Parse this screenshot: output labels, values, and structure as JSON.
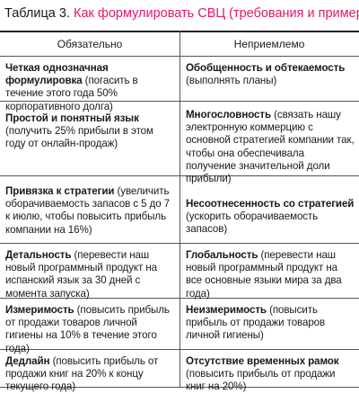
{
  "title": {
    "prefix": "Таблица 3.",
    "text": "Как формулировать СВЦ (требования и примеры)"
  },
  "headers": {
    "left": "Обязательно",
    "right": "Неприемлемо"
  },
  "rows": [
    {
      "left": {
        "term": "Четкая однозначная формулировка",
        "example": " (погасить в течение этого года 50% корпоративного долга)"
      },
      "right": {
        "term": "Обобщенность и обтекаемость",
        "example": " (выполнять планы)"
      }
    },
    {
      "left": {
        "term": "Простой и понятный язык",
        "example": " (получить 25% прибыли в этом году от онлайн-продаж)"
      },
      "right": {
        "term": "Многословность",
        "example": " (связать нашу электронную коммерцию с основной стратегией компании так, чтобы она обеспечивала получение значительной доли прибыли)"
      }
    },
    {
      "left": {
        "term": "Привязка к стратегии",
        "example": " (увеличить оборачиваемость запасов с 5 до 7 к июлю, чтобы повысить прибыль компании на 16%)"
      },
      "right": {
        "term": "Несоотнесенность со стратегией",
        "example": " (ускорить оборачиваемость запасов)"
      }
    },
    {
      "left": {
        "term": "Детальность",
        "example": " (перевести наш новый программный продукт на испанский язык за 30 дней с момента запуска)"
      },
      "right": {
        "term": "Глобальность",
        "example": " (перевести наш новый программный продукт на все основные языки мира за два года)"
      }
    },
    {
      "left": {
        "term": "Измеримость",
        "example": " (повысить прибыль от продажи товаров личной гигиены на 10% в течение этого года)"
      },
      "right": {
        "term": "Неизмеримость",
        "example": " (повысить прибыль от продажи товаров личной гигиены)"
      }
    },
    {
      "left": {
        "term": "Дедлайн",
        "example": " (повысить прибыль от продажи книг на 20% к концу текущего года)"
      },
      "right": {
        "term": "Отсутствие временных рамок",
        "example": " (повысить прибыль от продажи книг на 20%)"
      }
    }
  ]
}
